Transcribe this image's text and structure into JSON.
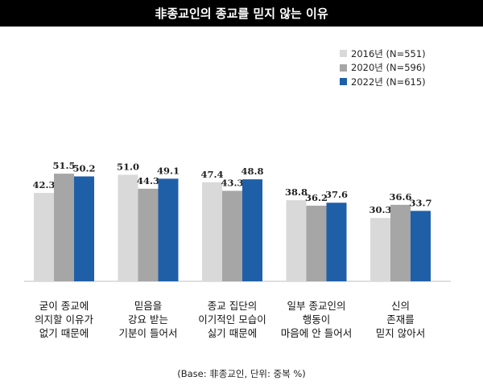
{
  "chart_data": {
    "type": "bar",
    "title": "非종교인의 종교를 믿지 않는 이유",
    "categories": [
      [
        "굳이 종교에",
        "의지할 이유가",
        "없기 때문에"
      ],
      [
        "믿음을",
        "강요 받는",
        "기분이 들어서"
      ],
      [
        "종교 집단의",
        "이기적인 모습이",
        "싫기 때문에"
      ],
      [
        "일부 종교인의",
        "행동이",
        "마음에 안 들어서"
      ],
      [
        "신의",
        "존재를",
        "믿지 않아서"
      ]
    ],
    "series": [
      {
        "name": "2016년 (N=551)",
        "color": "#d9d9d9",
        "values": [
          42.3,
          51.0,
          47.4,
          38.8,
          30.3
        ]
      },
      {
        "name": "2020년 (N=596)",
        "color": "#a6a6a6",
        "values": [
          51.5,
          44.3,
          43.3,
          36.2,
          36.6
        ]
      },
      {
        "name": "2022년 (N=615)",
        "color": "#1f5fa8",
        "values": [
          50.2,
          49.1,
          48.8,
          37.6,
          33.7
        ]
      }
    ],
    "ylim": [
      0,
      60
    ],
    "legend": "top-right",
    "grid": false,
    "xlabel": "",
    "ylabel": ""
  },
  "note": "(Base: 非종교인, 단위: 중복 %)"
}
